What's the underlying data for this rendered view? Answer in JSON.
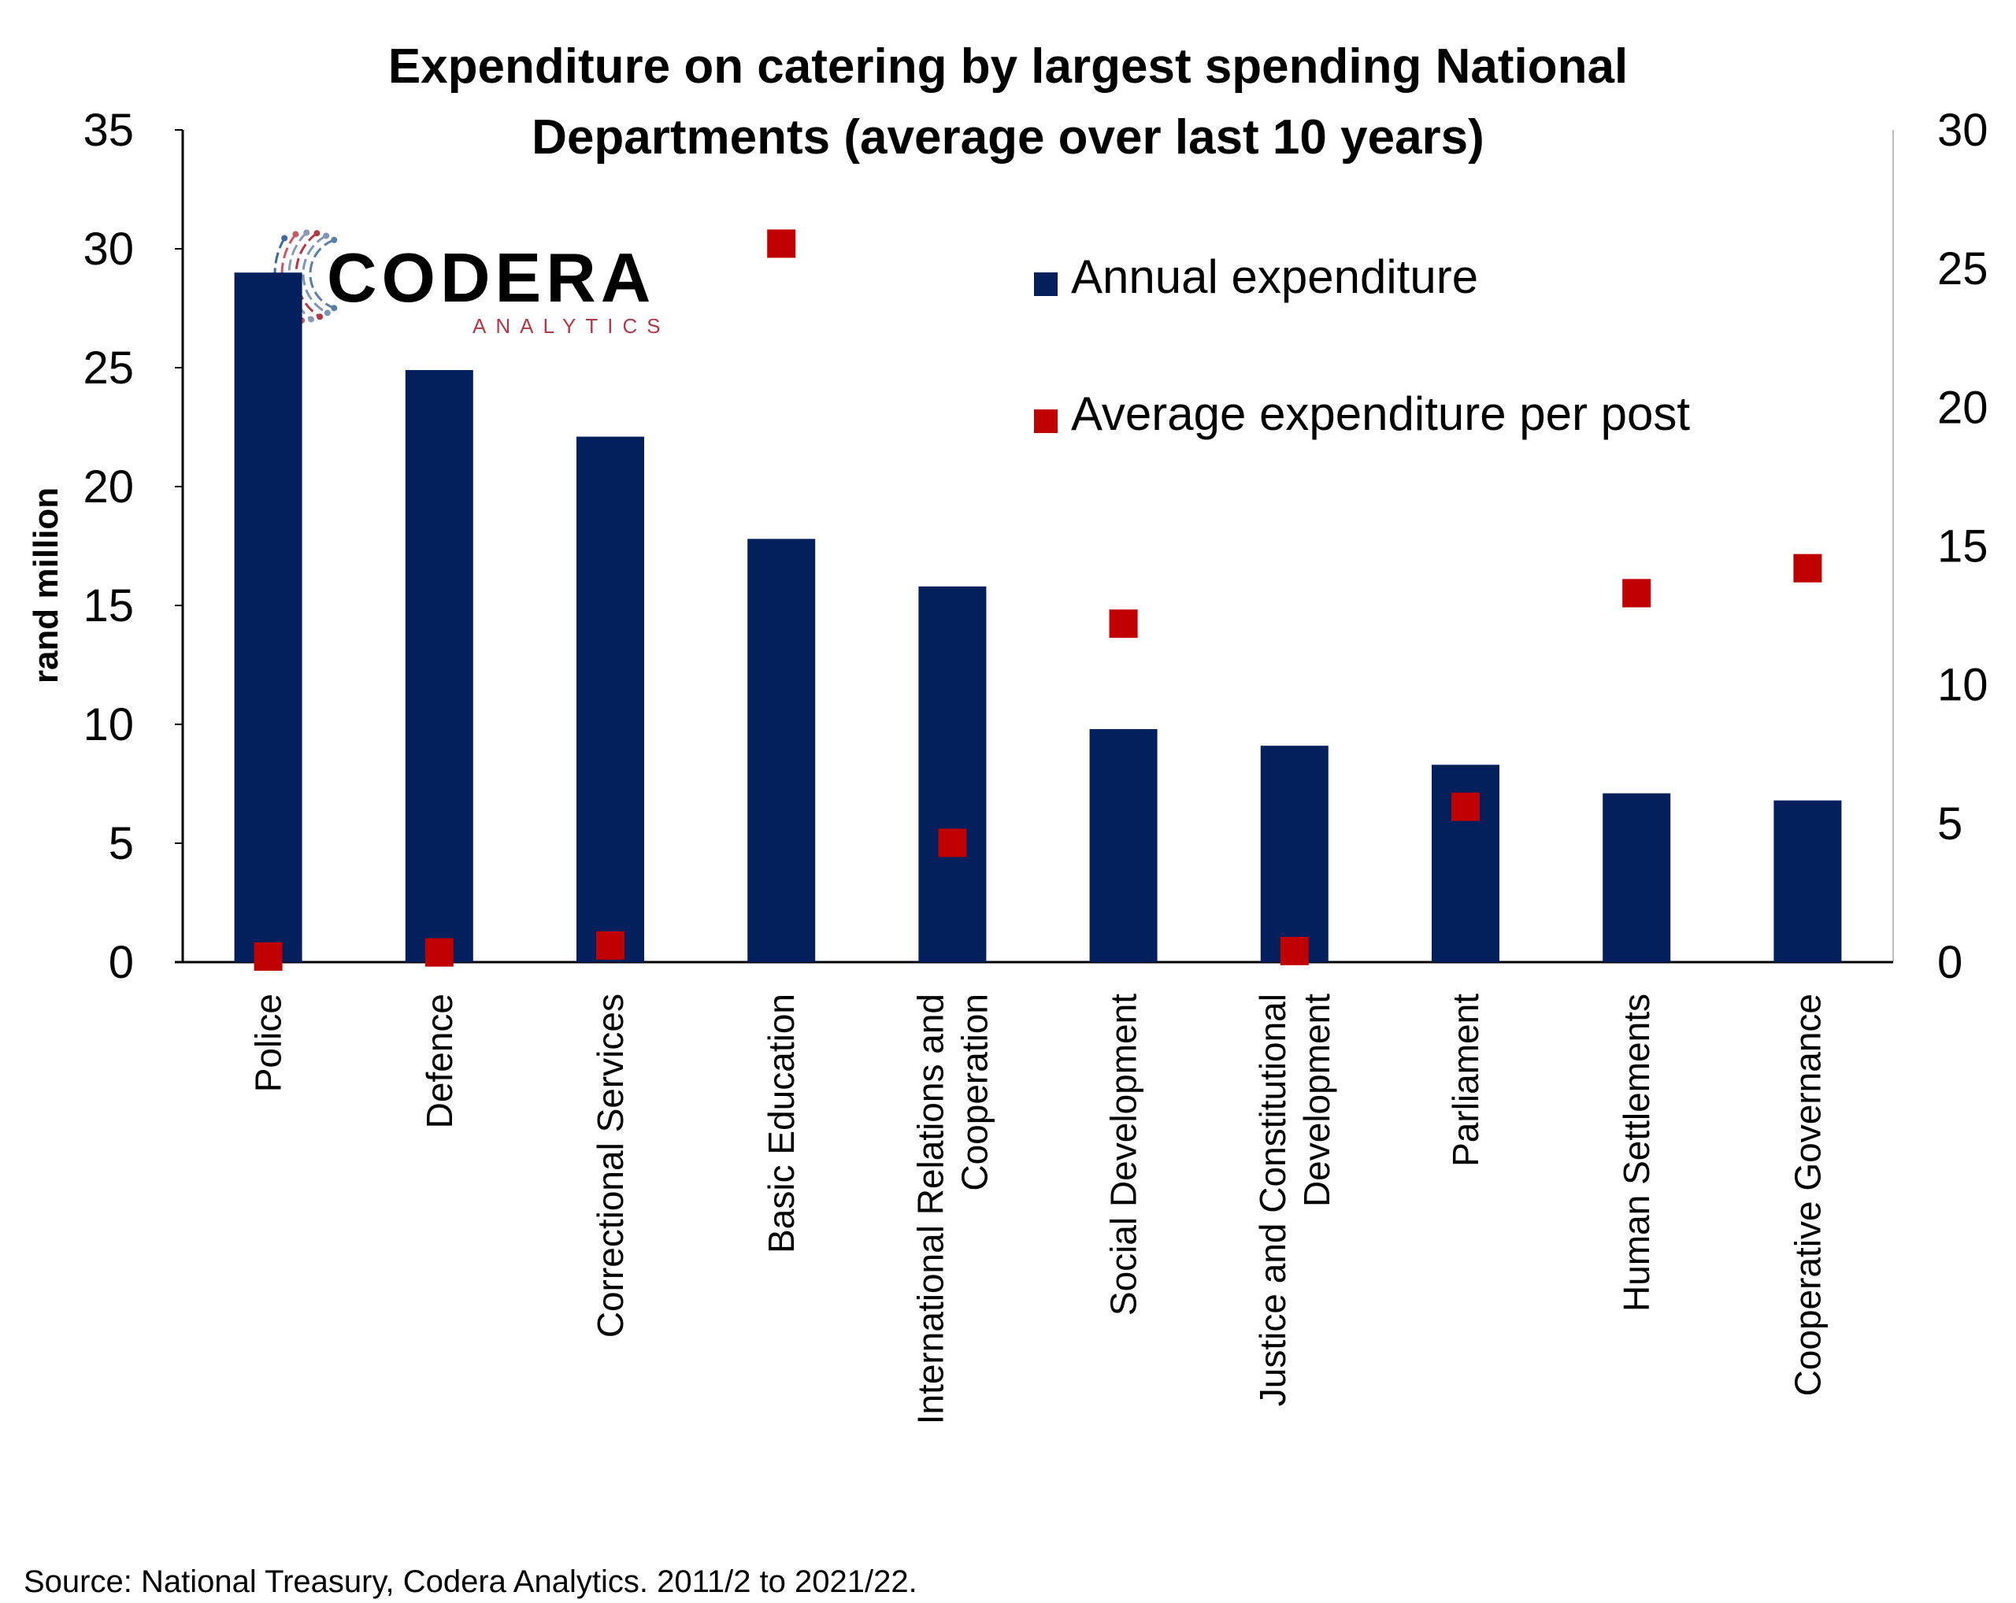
{
  "chart_data": {
    "type": "bar",
    "title_lines": [
      "Expenditure on catering by largest spending National",
      "Departments (average over last 10 years)"
    ],
    "ylabel": "rand million",
    "ylabel_right": "",
    "ylim": [
      0,
      35
    ],
    "ylim_right": [
      0,
      30
    ],
    "yticks": [
      "0",
      "5",
      "10",
      "15",
      "20",
      "25",
      "30",
      "35"
    ],
    "yticks_right": [
      "0",
      "5",
      "10",
      "15",
      "20",
      "25",
      "30"
    ],
    "categories": [
      [
        "Police"
      ],
      [
        "Defence"
      ],
      [
        "Correctional Services"
      ],
      [
        "Basic Education"
      ],
      [
        "International Relations and",
        "Cooperation"
      ],
      [
        "Social Development"
      ],
      [
        "Justice and Constitutional",
        "Development"
      ],
      [
        "Parliament"
      ],
      [
        "Human Settlements"
      ],
      [
        "Cooperative Governance"
      ]
    ],
    "series": [
      {
        "name": "Annual expenditure",
        "type": "bar",
        "axis": "left",
        "color": "#03205C",
        "values": [
          29.0,
          24.9,
          22.1,
          17.8,
          15.8,
          9.8,
          9.1,
          8.3,
          7.1,
          6.8
        ]
      },
      {
        "name": "Average expenditure per post",
        "type": "scatter",
        "axis": "right",
        "color": "#C00000",
        "values": [
          0.2,
          0.35,
          0.6,
          25.9,
          4.3,
          12.2,
          0.4,
          5.6,
          13.3,
          14.2
        ]
      }
    ],
    "legend_position": "top-right",
    "grid": false
  },
  "logo": {
    "main": "CODERA",
    "sub": "ANALYTICS"
  },
  "source": "Source: National Treasury, Codera Analytics. 2011/2 to 2021/22."
}
